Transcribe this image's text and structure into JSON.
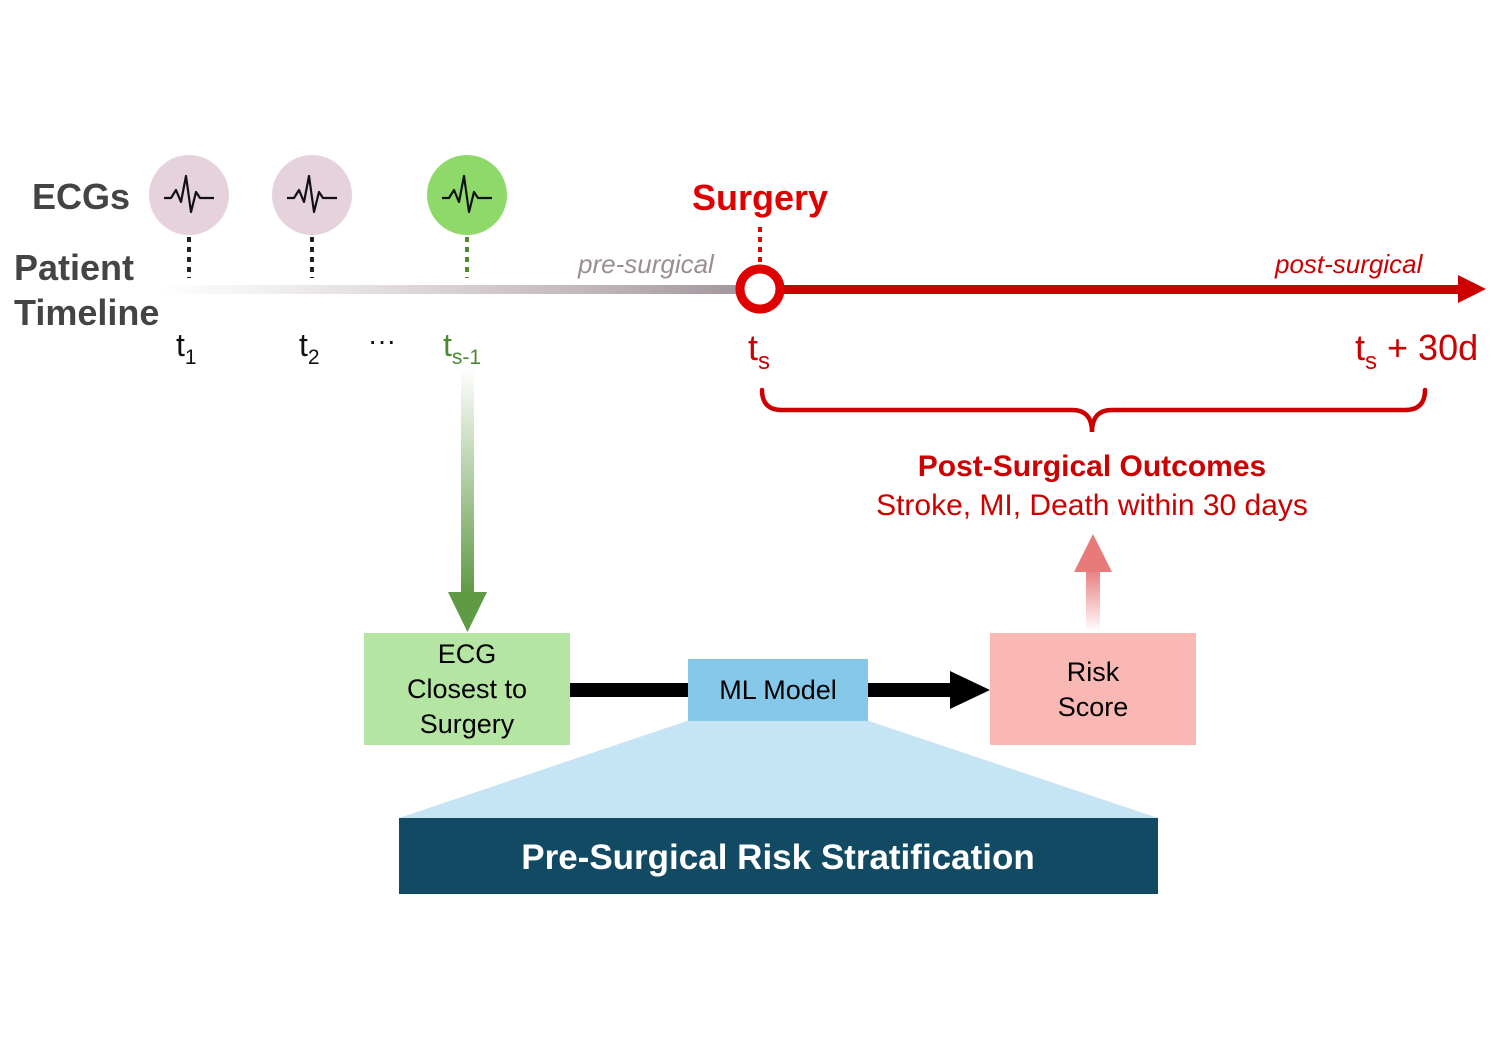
{
  "labels": {
    "ecgs": "ECGs",
    "patient": "Patient",
    "timeline": "Timeline",
    "surgery": "Surgery",
    "pre_surgical": "pre-surgical",
    "post_surgical": "post-surgical"
  },
  "ticks": {
    "t1": {
      "base": "t",
      "sub": "1"
    },
    "t2": {
      "base": "t",
      "sub": "2"
    },
    "ellipsis": "···",
    "ts_minus_1": {
      "base": "t",
      "sub": "s-1"
    },
    "ts": {
      "base": "t",
      "sub": "s"
    },
    "ts_plus": {
      "base": "t",
      "sub": "s",
      "suffix": " + 30d"
    }
  },
  "outcomes": {
    "title": "Post-Surgical Outcomes",
    "subtitle": "Stroke, MI, Death within 30 days"
  },
  "boxes": {
    "ecg_closest": [
      "ECG",
      "Closest to",
      "Surgery"
    ],
    "ml_model": "ML Model",
    "risk_score": [
      "Risk",
      "Score"
    ]
  },
  "banner": "Pre-Surgical Risk Stratification",
  "colors": {
    "red": "#cc0000",
    "green": "#4e8a2e",
    "gray_text": "#444444",
    "ecg_pink": "#e6d2dc",
    "ecg_green": "#8fd96b",
    "box_green": "#b5e5a2",
    "box_blue": "#85c8ea",
    "box_pink": "#f9b8b4",
    "trapezoid": "#c5e4f4",
    "banner": "#124a63"
  }
}
